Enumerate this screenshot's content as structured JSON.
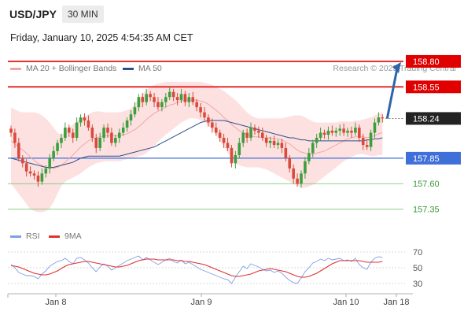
{
  "header": {
    "pair": "USD/JPY",
    "timeframe": "30 MIN",
    "timestamp": "Friday, January 10, 2025 4:54:35 AM CET"
  },
  "legend": {
    "ma_bb": "MA 20 + Bollinger Bands",
    "ma50": "MA 50",
    "rsi": "RSI",
    "rsi_ma": "9MA"
  },
  "credit": "Research © 2025 Trading Central",
  "colors": {
    "up": "#3d9e3d",
    "down": "#d94a3c",
    "resistance": "#e00000",
    "support_main": "#3f6fd8",
    "support_minor": "#6cc06c",
    "bb_fill": "#fde1e1",
    "ma20": "#f2a5a5",
    "ma50": "#2c4f8c",
    "rsi": "#7f9fe6",
    "rsi_ma": "#e03030",
    "arrow": "#2e64a8"
  },
  "chart_data": [
    {
      "type": "candlestick",
      "title": "USD/JPY 30 MIN",
      "ylim": [
        157.2,
        158.9
      ],
      "x_ticks": [
        "Jan 8",
        "Jan 9",
        "Jan 10",
        "Jan 18"
      ],
      "last_price": "158.24",
      "levels": [
        {
          "label": "158.80",
          "value": 158.8,
          "kind": "resistance"
        },
        {
          "label": "158.55",
          "value": 158.55,
          "kind": "resistance"
        },
        {
          "label": "157.85",
          "value": 157.85,
          "kind": "support_main"
        },
        {
          "label": "157.60",
          "value": 157.6,
          "kind": "support_minor"
        },
        {
          "label": "157.35",
          "value": 157.35,
          "kind": "support_minor"
        }
      ],
      "projection": {
        "from": 158.24,
        "to": 158.8
      },
      "closes": [
        158.1,
        158.0,
        157.85,
        157.8,
        157.72,
        157.7,
        157.68,
        157.62,
        157.7,
        157.75,
        157.85,
        157.92,
        158.0,
        158.05,
        158.15,
        158.1,
        158.05,
        158.2,
        158.25,
        158.22,
        158.15,
        158.05,
        157.95,
        158.05,
        158.15,
        158.1,
        158.0,
        158.05,
        158.1,
        158.15,
        158.22,
        158.28,
        158.35,
        158.45,
        158.4,
        158.48,
        158.45,
        158.4,
        158.35,
        158.4,
        158.45,
        158.5,
        158.45,
        158.42,
        158.48,
        158.4,
        158.45,
        158.4,
        158.35,
        158.3,
        158.25,
        158.2,
        158.15,
        158.1,
        158.05,
        158.0,
        157.95,
        157.8,
        157.88,
        158.0,
        158.1,
        158.05,
        158.15,
        158.12,
        158.1,
        158.05,
        158.0,
        158.02,
        157.98,
        158.0,
        157.95,
        157.85,
        157.75,
        157.65,
        157.6,
        157.7,
        157.82,
        157.9,
        158.0,
        158.05,
        158.1,
        158.08,
        158.12,
        158.1,
        158.12,
        158.14,
        158.1,
        158.12,
        158.1,
        158.15,
        158.05,
        157.98,
        157.96,
        158.1,
        158.2,
        158.25,
        158.24
      ],
      "ma20": [
        158.02,
        157.99,
        157.96,
        157.93,
        157.9,
        157.86,
        157.83,
        157.8,
        157.78,
        157.76,
        157.75,
        157.75,
        157.76,
        157.78,
        157.81,
        157.85,
        157.88,
        157.92,
        157.96,
        157.99,
        158.02,
        158.04,
        158.05,
        158.06,
        158.07,
        158.07,
        158.07,
        158.07,
        158.07,
        158.08,
        158.09,
        158.11,
        158.13,
        158.16,
        158.19,
        158.23,
        158.26,
        158.29,
        158.31,
        158.33,
        158.35,
        158.37,
        158.38,
        158.4,
        158.41,
        158.42,
        158.42,
        158.42,
        158.42,
        158.41,
        158.4,
        158.38,
        158.35,
        158.32,
        158.29,
        158.25,
        158.22,
        158.18,
        158.15,
        158.12,
        158.1,
        158.08,
        158.07,
        158.06,
        158.06,
        158.05,
        158.05,
        158.05,
        158.04,
        158.04,
        158.03,
        158.01,
        157.99,
        157.96,
        157.93,
        157.91,
        157.9,
        157.89,
        157.89,
        157.9,
        157.91,
        157.92,
        157.94,
        157.96,
        157.98,
        158.0,
        158.02,
        158.04,
        158.05,
        158.06,
        158.06,
        158.06,
        158.05,
        158.06,
        158.07,
        158.09,
        158.1
      ],
      "bb_upper": [
        158.35,
        158.33,
        158.31,
        158.3,
        158.3,
        158.3,
        158.3,
        158.29,
        158.27,
        158.24,
        158.2,
        158.15,
        158.1,
        158.08,
        158.1,
        158.15,
        158.18,
        158.21,
        158.24,
        158.26,
        158.28,
        158.3,
        158.31,
        158.31,
        158.3,
        158.3,
        158.3,
        158.3,
        158.3,
        158.31,
        158.32,
        158.34,
        158.38,
        158.43,
        158.48,
        158.52,
        158.55,
        158.57,
        158.58,
        158.59,
        158.6,
        158.6,
        158.6,
        158.6,
        158.6,
        158.6,
        158.6,
        158.6,
        158.6,
        158.6,
        158.59,
        158.58,
        158.57,
        158.55,
        158.53,
        158.51,
        158.48,
        158.45,
        158.42,
        158.38,
        158.34,
        158.3,
        158.27,
        158.25,
        158.24,
        158.24,
        158.24,
        158.24,
        158.24,
        158.24,
        158.24,
        158.25,
        158.26,
        158.27,
        158.27,
        158.27,
        158.25,
        158.23,
        158.21,
        158.2,
        158.2,
        158.2,
        158.2,
        158.2,
        158.2,
        158.21,
        158.21,
        158.21,
        158.21,
        158.22,
        158.22,
        158.23,
        158.24,
        158.25,
        158.27,
        158.29,
        158.3
      ],
      "bb_lower": [
        157.6,
        157.55,
        157.5,
        157.45,
        157.4,
        157.35,
        157.33,
        157.32,
        157.32,
        157.33,
        157.36,
        157.42,
        157.5,
        157.58,
        157.62,
        157.64,
        157.66,
        157.68,
        157.7,
        157.73,
        157.76,
        157.78,
        157.8,
        157.81,
        157.82,
        157.82,
        157.82,
        157.82,
        157.82,
        157.83,
        157.84,
        157.85,
        157.86,
        157.87,
        157.88,
        157.9,
        157.93,
        157.97,
        158.01,
        158.05,
        158.08,
        158.11,
        158.14,
        158.17,
        158.2,
        158.22,
        158.24,
        158.24,
        158.24,
        158.22,
        158.2,
        158.17,
        158.13,
        158.08,
        158.02,
        157.96,
        157.9,
        157.84,
        157.8,
        157.78,
        157.77,
        157.76,
        157.76,
        157.76,
        157.76,
        157.75,
        157.74,
        157.72,
        157.7,
        157.68,
        157.66,
        157.64,
        157.62,
        157.6,
        157.58,
        157.56,
        157.56,
        157.57,
        157.59,
        157.61,
        157.64,
        157.67,
        157.7,
        157.73,
        157.76,
        157.79,
        157.82,
        157.84,
        157.86,
        157.88,
        157.89,
        157.89,
        157.88,
        157.87,
        157.87,
        157.88,
        157.88
      ],
      "ma50": [
        157.85,
        157.84,
        157.83,
        157.82,
        157.81,
        157.8,
        157.79,
        157.78,
        157.77,
        157.76,
        157.76,
        157.76,
        157.77,
        157.78,
        157.79,
        157.8,
        157.81,
        157.83,
        157.85,
        157.86,
        157.87,
        157.87,
        157.87,
        157.87,
        157.87,
        157.87,
        157.87,
        157.87,
        157.87,
        157.88,
        157.89,
        157.9,
        157.91,
        157.92,
        157.93,
        157.94,
        157.95,
        157.96,
        157.98,
        158.0,
        158.02,
        158.04,
        158.06,
        158.08,
        158.1,
        158.12,
        158.14,
        158.16,
        158.18,
        158.2,
        158.21,
        158.22,
        158.22,
        158.22,
        158.22,
        158.22,
        158.21,
        158.2,
        158.19,
        158.18,
        158.17,
        158.16,
        158.15,
        158.14,
        158.13,
        158.12,
        158.11,
        158.1,
        158.09,
        158.08,
        158.07,
        158.06,
        158.05,
        158.05,
        158.04,
        158.03,
        158.03,
        158.02,
        158.02,
        158.02,
        158.02,
        158.02,
        158.02,
        158.02,
        158.02,
        158.02,
        158.02,
        158.02,
        158.02,
        158.02,
        158.02,
        158.02,
        158.03,
        158.03,
        158.04,
        158.04,
        158.05
      ]
    },
    {
      "type": "line",
      "title": "RSI",
      "ylim": [
        20,
        80
      ],
      "y_ticks": [
        "70",
        "50",
        "30"
      ],
      "series": [
        {
          "name": "RSI",
          "values": [
            54,
            50,
            44,
            42,
            40,
            40,
            39,
            36,
            42,
            46,
            52,
            55,
            58,
            59,
            62,
            58,
            55,
            62,
            63,
            60,
            56,
            50,
            45,
            51,
            55,
            52,
            47,
            50,
            53,
            56,
            59,
            61,
            63,
            65,
            60,
            63,
            60,
            57,
            54,
            57,
            60,
            62,
            58,
            56,
            60,
            55,
            57,
            54,
            51,
            48,
            46,
            44,
            42,
            40,
            38,
            36,
            35,
            30,
            38,
            45,
            52,
            49,
            55,
            53,
            51,
            48,
            46,
            47,
            44,
            46,
            43,
            38,
            34,
            31,
            30,
            37,
            45,
            50,
            56,
            58,
            61,
            59,
            62,
            60,
            61,
            62,
            59,
            60,
            58,
            62,
            54,
            50,
            48,
            57,
            62,
            64,
            63
          ]
        },
        {
          "name": "9MA",
          "values": [
            53,
            52,
            51,
            49,
            47,
            45,
            43,
            42,
            41,
            41,
            42,
            44,
            46,
            49,
            52,
            54,
            55,
            56,
            57,
            58,
            58,
            57,
            56,
            55,
            54,
            53,
            52,
            51,
            51,
            52,
            53,
            55,
            57,
            59,
            60,
            61,
            61,
            61,
            60,
            60,
            60,
            60,
            60,
            59,
            59,
            58,
            58,
            57,
            56,
            55,
            54,
            52,
            50,
            48,
            46,
            44,
            42,
            40,
            39,
            39,
            40,
            41,
            42,
            44,
            46,
            47,
            48,
            49,
            48,
            47,
            46,
            45,
            43,
            41,
            39,
            38,
            38,
            39,
            41,
            43,
            46,
            49,
            52,
            55,
            57,
            59,
            59,
            59,
            59,
            59,
            59,
            58,
            57,
            57,
            57,
            57,
            58
          ]
        }
      ]
    }
  ]
}
